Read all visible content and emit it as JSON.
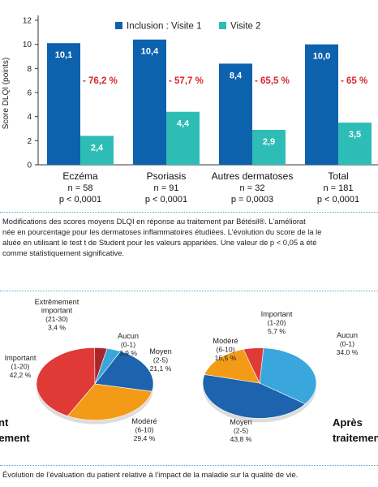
{
  "chart_data": [
    {
      "type": "bar",
      "ylabel": "Score DLQI (points)",
      "ylim": [
        0,
        12
      ],
      "yticks": [
        0,
        2,
        4,
        6,
        8,
        10,
        12
      ],
      "categories": [
        {
          "name": "Eczéma",
          "n": "n = 58",
          "p": "p < 0,0001"
        },
        {
          "name": "Psoriasis",
          "n": "n = 91",
          "p": "p < 0,0001"
        },
        {
          "name": "Autres dermatoses",
          "n": "n = 32",
          "p": "p = 0,0003"
        },
        {
          "name": "Total",
          "n": "n = 181",
          "p": "p < 0,0001"
        }
      ],
      "series": [
        {
          "name": "Inclusion : Visite 1",
          "color": "#0d62ad",
          "values": [
            10.1,
            10.4,
            8.4,
            10.0
          ],
          "labels": [
            "10,1",
            "10,4",
            "8,4",
            "10,0"
          ]
        },
        {
          "name": "Visite 2",
          "color": "#2dbdb6",
          "values": [
            2.4,
            4.4,
            2.9,
            3.5
          ],
          "labels": [
            "2,4",
            "4,4",
            "2,9",
            "3,5"
          ]
        }
      ],
      "changes": [
        "- 76,2 %",
        "- 57,7 %",
        "- 65,5 %",
        "- 65 %"
      ],
      "change_color": "#d9262b",
      "legend_position": "top"
    },
    {
      "type": "pie",
      "title_lines": [
        "",
        "tement"
      ],
      "slices": [
        {
          "name": "Aucun",
          "range": "(0-1)",
          "pct_label": "3,9 %",
          "value": 3.9,
          "color": "#3aa7dc"
        },
        {
          "name": "Moyen",
          "range": "(2-5)",
          "pct_label": "21,1 %",
          "value": 21.1,
          "color": "#1d63ae"
        },
        {
          "name": "Modéré",
          "range": "(6-10)",
          "pct_label": "29,4 %",
          "value": 29.4,
          "color": "#f39b17"
        },
        {
          "name": "Important",
          "range": "(1-20)",
          "pct_label": "42,2 %",
          "value": 42.2,
          "color": "#e03a36"
        },
        {
          "name": "Extrêmement important",
          "range": "(21-30)",
          "pct_label": "3,4 %",
          "value": 3.4,
          "color": "#a8262a"
        }
      ]
    },
    {
      "type": "pie",
      "title_lines": [
        "Après",
        "traitemen"
      ],
      "slices": [
        {
          "name": "Aucun",
          "range": "(0-1)",
          "pct_label": "34,0 %",
          "value": 34.0,
          "color": "#3aa7dc"
        },
        {
          "name": "Moyen",
          "range": "(2-5)",
          "pct_label": "43,8 %",
          "value": 43.8,
          "color": "#1d63ae"
        },
        {
          "name": "Modéré",
          "range": "(6-10)",
          "pct_label": "16,5 %",
          "value": 16.5,
          "color": "#f39b17"
        },
        {
          "name": "Important",
          "range": "(1-20)",
          "pct_label": "5,7 %",
          "value": 5.7,
          "color": "#e03a36"
        }
      ]
    }
  ],
  "left_partial_label": "nt",
  "caption1": [
    "Modifications des scores moyens DLQI en réponse au traitement par Bétésil®. L’améliorat",
    "née en pourcentage pour les dermatoses inflammatoires étudiées. L’évolution du score de la le",
    "aluée en utilisant le test t de Student pour les valeurs appariées. Une valeur de p < 0,05 a été",
    "comme statistiquement significative."
  ],
  "caption2": "Évolution de l’évaluation du patient relative à l’impact de la maladie sur la qualité de vie."
}
